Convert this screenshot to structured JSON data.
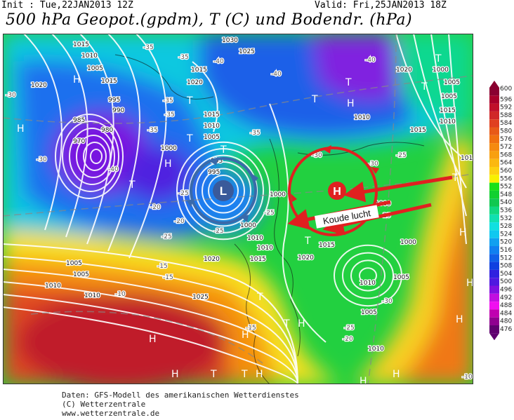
{
  "header": {
    "init": "Init : Tue,22JAN2013 12Z",
    "valid": "Valid: Fri,25JAN2013 18Z",
    "title": "500 hPa Geopot.(gpdm), T (C) und Bodendr. (hPa)"
  },
  "legend": {
    "levels": [
      "600",
      "596",
      "592",
      "588",
      "584",
      "580",
      "576",
      "572",
      "568",
      "564",
      "560",
      "556",
      "552",
      "548",
      "540",
      "536",
      "532",
      "528",
      "524",
      "520",
      "516",
      "512",
      "508",
      "504",
      "500",
      "496",
      "492",
      "488",
      "484",
      "480",
      "476"
    ],
    "colors": [
      "#8a0030",
      "#a8002a",
      "#c0102a",
      "#d02828",
      "#e04020",
      "#e85a18",
      "#f07010",
      "#f58a10",
      "#f8a010",
      "#fbb810",
      "#fdd010",
      "#f8f000",
      "#18e018",
      "#10d030",
      "#10c850",
      "#10d880",
      "#10e0b0",
      "#10e0e0",
      "#10c8f0",
      "#10a0f0",
      "#1080f0",
      "#1060e8",
      "#1040e0",
      "#3020e0",
      "#5018e0",
      "#8010e0",
      "#c010e0",
      "#f010f0",
      "#c000b0",
      "#900090",
      "#600070"
    ]
  },
  "annotations": {
    "low_label": "L",
    "high_label": "H",
    "cold_air_label": "Koude lucht",
    "low_color": "#3a6aaa",
    "high_color": "#e02020"
  },
  "map_labels": {
    "pressure": [
      "1015",
      "1010",
      "1005",
      "1020",
      "995",
      "990",
      "985",
      "980",
      "970",
      "1030",
      "1025",
      "1015",
      "1020",
      "1015",
      "1010",
      "1005",
      "1000",
      "1005",
      "1005",
      "1010",
      "1010",
      "1020",
      "1000",
      "1015",
      "1010",
      "1025",
      "1020",
      "1000",
      "1005",
      "1010",
      "995",
      "1015",
      "1020",
      "1010",
      "1010",
      "1015",
      "1005",
      "1000",
      "1005",
      "1010",
      "1000",
      "995",
      "1015",
      "1015",
      "1000",
      "1005",
      "1010",
      "1015"
    ],
    "temperature": [
      "-35",
      "-35",
      "-40",
      "-30",
      "-35",
      "-35",
      "-35",
      "-40",
      "-40",
      "-30",
      "-25",
      "-20",
      "-25",
      "-15",
      "-10",
      "-15",
      "-35",
      "-25",
      "-25",
      "-20",
      "-30",
      "-25",
      "-40",
      "-25",
      "-30",
      "-25",
      "-20",
      "-15",
      "-30",
      "-10"
    ],
    "systems": [
      "H",
      "H",
      "T",
      "T",
      "T",
      "H",
      "T",
      "T",
      "H",
      "T",
      "T",
      "T",
      "T",
      "H",
      "H",
      "H",
      "H",
      "H",
      "H",
      "T",
      "T",
      "H",
      "H",
      "H",
      "T",
      "H",
      "T",
      "T"
    ]
  },
  "footer": {
    "line1": "Daten: GFS-Modell des amerikanischen Wetterdienstes",
    "line2": "(C) Wetterzentrale",
    "line3": "www.wetterzentrale.de"
  }
}
